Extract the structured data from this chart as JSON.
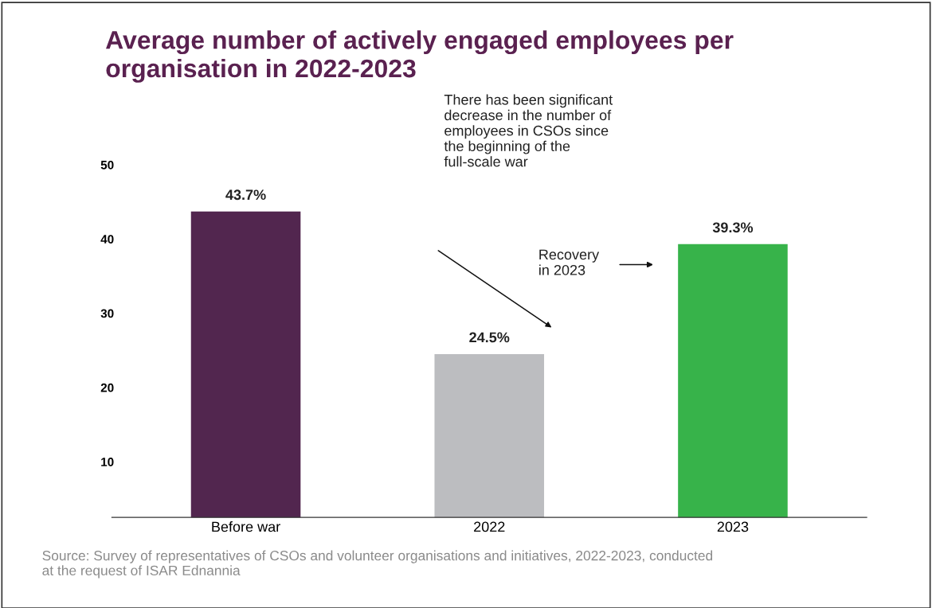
{
  "chart_data": {
    "type": "bar",
    "title": "Average number of actively engaged employees per\norganisation in 2022-2023",
    "categories": [
      "Before war",
      "2022",
      "2023"
    ],
    "values": [
      43.7,
      24.5,
      39.3
    ],
    "colors": [
      "#52264f",
      "#bcbdc0",
      "#37b34a"
    ],
    "value_labels": [
      "43.7%",
      "24.5%",
      "39.3%"
    ],
    "ylim": [
      2.5,
      50
    ],
    "yticks": [
      10,
      20,
      30,
      40,
      50
    ],
    "grid": false,
    "annotations": [
      "There has been significant\ndecrease in the number of\nemployees in CSOs since\nthe beginning of the\nfull-scale war",
      "Recovery\nin 2023",
      "Source: Survey of representatives of CSOs and volunteer organisations and initiatives, 2022-2023, conducted\nat the request of ISAR Ednannia"
    ]
  }
}
